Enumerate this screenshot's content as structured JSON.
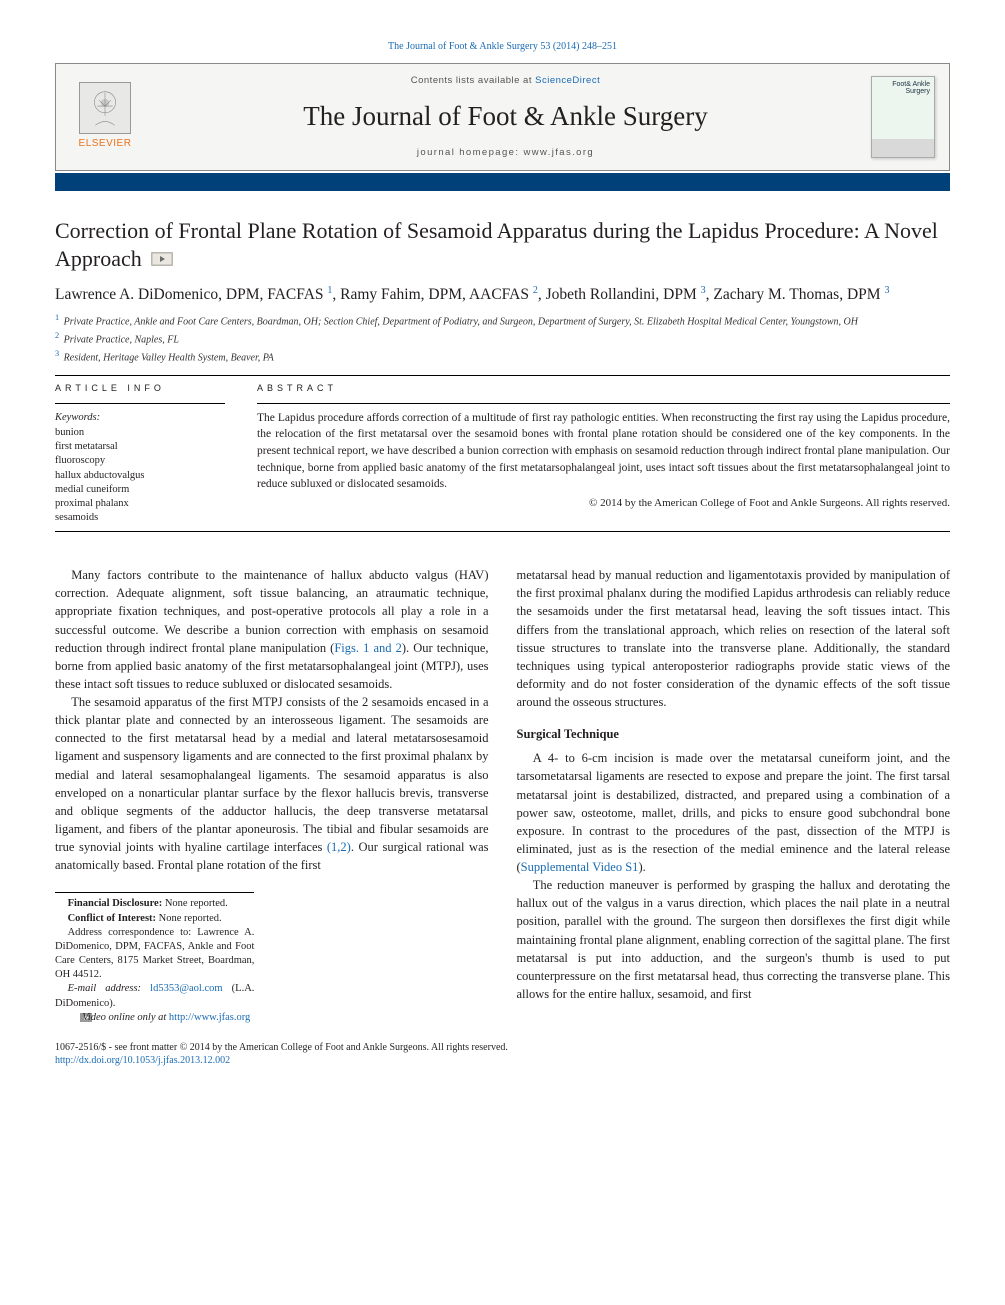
{
  "colors": {
    "link": "#1a6bb4",
    "elsevier_orange": "#e9711c",
    "blue_bar": "#00417a",
    "text": "#231f20",
    "masthead_bg": "#f5f5f3"
  },
  "header": {
    "citation": "The Journal of Foot & Ankle Surgery 53 (2014) 248–251",
    "contents_prefix": "Contents lists available at ",
    "contents_link": "ScienceDirect",
    "journal_title": "The Journal of Foot & Ankle Surgery",
    "homepage_label": "journal homepage: ",
    "homepage_url": "www.jfas.org",
    "elsevier_label": "ELSEVIER",
    "cover_label": "Foot&\nAnkle\nSurgery"
  },
  "article": {
    "title": "Correction of Frontal Plane Rotation of Sesamoid Apparatus during the Lapidus Procedure: A Novel Approach",
    "authors_html": "Lawrence A. DiDomenico, DPM, FACFAS|1|, Ramy Fahim, DPM, AACFAS|2|, Jobeth Rollandini, DPM|3|, Zachary M. Thomas, DPM|3|",
    "affiliations": [
      {
        "n": "1",
        "text": "Private Practice, Ankle and Foot Care Centers, Boardman, OH; Section Chief, Department of Podiatry, and Surgeon, Department of Surgery, St. Elizabeth Hospital Medical Center, Youngstown, OH"
      },
      {
        "n": "2",
        "text": "Private Practice, Naples, FL"
      },
      {
        "n": "3",
        "text": "Resident, Heritage Valley Health System, Beaver, PA"
      }
    ]
  },
  "info": {
    "heading": "ARTICLE INFO",
    "kw_label": "Keywords:",
    "keywords": [
      "bunion",
      "first metatarsal",
      "fluoroscopy",
      "hallux abductovalgus",
      "medial cuneiform",
      "proximal phalanx",
      "sesamoids"
    ]
  },
  "abstract": {
    "heading": "ABSTRACT",
    "text": "The Lapidus procedure affords correction of a multitude of first ray pathologic entities. When reconstructing the first ray using the Lapidus procedure, the relocation of the first metatarsal over the sesamoid bones with frontal plane rotation should be considered one of the key components. In the present technical report, we have described a bunion correction with emphasis on sesamoid reduction through indirect frontal plane manipulation. Our technique, borne from applied basic anatomy of the first metatarsophalangeal joint, uses intact soft tissues about the first metatarsophalangeal joint to reduce subluxed or dislocated sesamoids.",
    "copyright": "© 2014 by the American College of Foot and Ankle Surgeons. All rights reserved."
  },
  "body": {
    "p1": "Many factors contribute to the maintenance of hallux abducto valgus (HAV) correction. Adequate alignment, soft tissue balancing, an atraumatic technique, appropriate fixation techniques, and post-operative protocols all play a role in a successful outcome. We describe a bunion correction with emphasis on sesamoid reduction through indirect frontal plane manipulation (",
    "p1_link": "Figs. 1 and 2",
    "p1_b": "). Our technique, borne from applied basic anatomy of the first metatarsophalangeal joint (MTPJ), uses these intact soft tissues to reduce subluxed or dislocated sesamoids.",
    "p2a": "The sesamoid apparatus of the first MTPJ consists of the 2 sesamoids encased in a thick plantar plate and connected by an interosseous ligament. The sesamoids are connected to the first metatarsal head by a medial and lateral metatarsosesamoid ligament and suspensory ligaments and are connected to the first proximal phalanx by medial and lateral sesamophalangeal ligaments. The sesamoid apparatus is also enveloped on a nonarticular plantar surface by the flexor hallucis brevis, transverse and oblique segments of the adductor hallucis, the deep transverse metatarsal ligament, and fibers of the plantar aponeurosis. The tibial and fibular sesamoids are true synovial joints with hyaline cartilage interfaces ",
    "p2_ref": "(1,2)",
    "p2b": ". Our surgical rational was anatomically based. Frontal plane rotation of the first ",
    "p3": "metatarsal head by manual reduction and ligamentotaxis provided by manipulation of the first proximal phalanx during the modified Lapidus arthrodesis can reliably reduce the sesamoids under the first metatarsal head, leaving the soft tissues intact. This differs from the translational approach, which relies on resection of the lateral soft tissue structures to translate into the transverse plane. Additionally, the standard techniques using typical anteroposterior radiographs provide static views of the deformity and do not foster consideration of the dynamic effects of the soft tissue around the osseous structures.",
    "subhead": "Surgical Technique",
    "p4a": "A 4- to 6-cm incision is made over the metatarsal cuneiform joint, and the tarsometatarsal ligaments are resected to expose and prepare the joint. The first tarsal metatarsal joint is destabilized, distracted, and prepared using a combination of a power saw, osteotome, mallet, drills, and picks to ensure good subchondral bone exposure. In contrast to the procedures of the past, dissection of the MTPJ is eliminated, just as is the resection of the medial eminence and the lateral release (",
    "p4_link": "Supplemental Video S1",
    "p4b": ").",
    "p5": "The reduction maneuver is performed by grasping the hallux and derotating the hallux out of the valgus in a varus direction, which places the nail plate in a neutral position, parallel with the ground. The surgeon then dorsiflexes the first digit while maintaining frontal plane alignment, enabling correction of the sagittal plane. The first metatarsal is put into adduction, and the surgeon's thumb is used to put counterpressure on the first metatarsal head, thus correcting the transverse plane. This allows for the entire hallux, sesamoid, and first"
  },
  "footnotes": {
    "fd_label": "Financial Disclosure:",
    "fd_text": " None reported.",
    "coi_label": "Conflict of Interest:",
    "coi_text": " None reported.",
    "addr": "Address correspondence to: Lawrence A. DiDomenico, DPM, FACFAS, Ankle and Foot Care Centers, 8175 Market Street, Boardman, OH 44512.",
    "email_label": "E-mail address: ",
    "email": "ld5353@aol.com",
    "email_paren": " (L.A. DiDomenico).",
    "video_label": "Video online only at ",
    "video_url": "http://www.jfas.org"
  },
  "footer": {
    "line1": "1067-2516/$ - see front matter © 2014 by the American College of Foot and Ankle Surgeons. All rights reserved.",
    "doi": "http://dx.doi.org/10.1053/j.jfas.2013.12.002"
  }
}
